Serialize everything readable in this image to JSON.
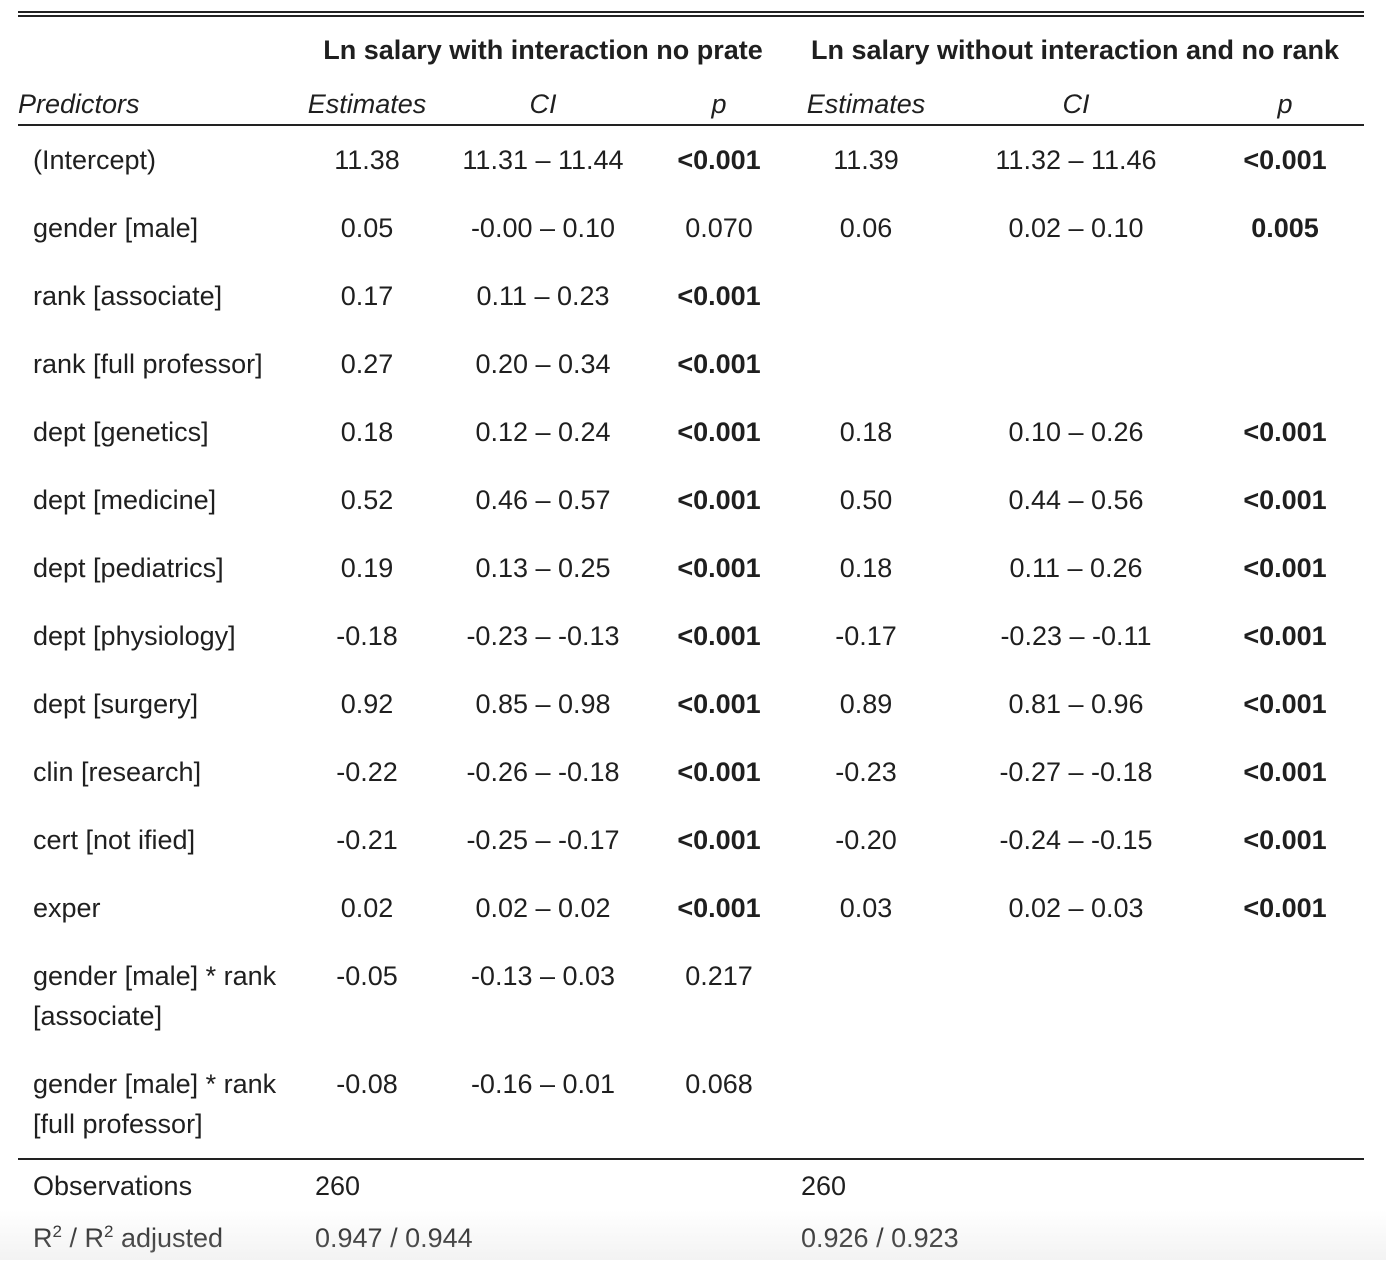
{
  "header": {
    "model1_title": "Ln salary with interaction no prate",
    "model2_title": "Ln salary without interaction and no rank",
    "predictors_label": "Predictors",
    "estimates_label": "Estimates",
    "ci_label": "CI",
    "p_label": "p"
  },
  "rows": [
    {
      "predictor": "(Intercept)",
      "est1": "11.38",
      "ci1": "11.31 – 11.44",
      "p1": "<0.001",
      "p1_bold": true,
      "est2": "11.39",
      "ci2": "11.32 – 11.46",
      "p2": "<0.001",
      "p2_bold": true
    },
    {
      "predictor": "gender [male]",
      "est1": "0.05",
      "ci1": "-0.00 – 0.10",
      "p1": "0.070",
      "p1_bold": false,
      "est2": "0.06",
      "ci2": "0.02 – 0.10",
      "p2": "0.005",
      "p2_bold": true
    },
    {
      "predictor": "rank [associate]",
      "est1": "0.17",
      "ci1": "0.11 – 0.23",
      "p1": "<0.001",
      "p1_bold": true,
      "est2": "",
      "ci2": "",
      "p2": "",
      "p2_bold": false
    },
    {
      "predictor": "rank [full professor]",
      "est1": "0.27",
      "ci1": "0.20 – 0.34",
      "p1": "<0.001",
      "p1_bold": true,
      "est2": "",
      "ci2": "",
      "p2": "",
      "p2_bold": false
    },
    {
      "predictor": "dept [genetics]",
      "est1": "0.18",
      "ci1": "0.12 – 0.24",
      "p1": "<0.001",
      "p1_bold": true,
      "est2": "0.18",
      "ci2": "0.10 – 0.26",
      "p2": "<0.001",
      "p2_bold": true
    },
    {
      "predictor": "dept [medicine]",
      "est1": "0.52",
      "ci1": "0.46 – 0.57",
      "p1": "<0.001",
      "p1_bold": true,
      "est2": "0.50",
      "ci2": "0.44 – 0.56",
      "p2": "<0.001",
      "p2_bold": true
    },
    {
      "predictor": "dept [pediatrics]",
      "est1": "0.19",
      "ci1": "0.13 – 0.25",
      "p1": "<0.001",
      "p1_bold": true,
      "est2": "0.18",
      "ci2": "0.11 – 0.26",
      "p2": "<0.001",
      "p2_bold": true
    },
    {
      "predictor": "dept [physiology]",
      "est1": "-0.18",
      "ci1": "-0.23 – -0.13",
      "p1": "<0.001",
      "p1_bold": true,
      "est2": "-0.17",
      "ci2": "-0.23 – -0.11",
      "p2": "<0.001",
      "p2_bold": true
    },
    {
      "predictor": "dept [surgery]",
      "est1": "0.92",
      "ci1": "0.85 – 0.98",
      "p1": "<0.001",
      "p1_bold": true,
      "est2": "0.89",
      "ci2": "0.81 – 0.96",
      "p2": "<0.001",
      "p2_bold": true
    },
    {
      "predictor": "clin [research]",
      "est1": "-0.22",
      "ci1": "-0.26 – -0.18",
      "p1": "<0.001",
      "p1_bold": true,
      "est2": "-0.23",
      "ci2": "-0.27 – -0.18",
      "p2": "<0.001",
      "p2_bold": true
    },
    {
      "predictor": "cert [not ified]",
      "est1": "-0.21",
      "ci1": "-0.25 – -0.17",
      "p1": "<0.001",
      "p1_bold": true,
      "est2": "-0.20",
      "ci2": "-0.24 – -0.15",
      "p2": "<0.001",
      "p2_bold": true
    },
    {
      "predictor": "exper",
      "est1": "0.02",
      "ci1": "0.02 – 0.02",
      "p1": "<0.001",
      "p1_bold": true,
      "est2": "0.03",
      "ci2": "0.02 – 0.03",
      "p2": "<0.001",
      "p2_bold": true
    },
    {
      "predictor": "gender [male] * rank [associate]",
      "est1": "-0.05",
      "ci1": "-0.13 – 0.03",
      "p1": "0.217",
      "p1_bold": false,
      "est2": "",
      "ci2": "",
      "p2": "",
      "p2_bold": false
    },
    {
      "predictor": "gender [male] * rank [full professor]",
      "est1": "-0.08",
      "ci1": "-0.16 – 0.01",
      "p1": "0.068",
      "p1_bold": false,
      "est2": "",
      "ci2": "",
      "p2": "",
      "p2_bold": false
    }
  ],
  "footer": {
    "observations_label": "Observations",
    "obs1": "260",
    "obs2": "260",
    "r2_label_a": "R",
    "r2_sup": "2",
    "r2_label_b": " / R",
    "r2_label_c": " adjusted",
    "r2_1": "0.947 / 0.944",
    "r2_2": "0.926 / 0.923"
  }
}
